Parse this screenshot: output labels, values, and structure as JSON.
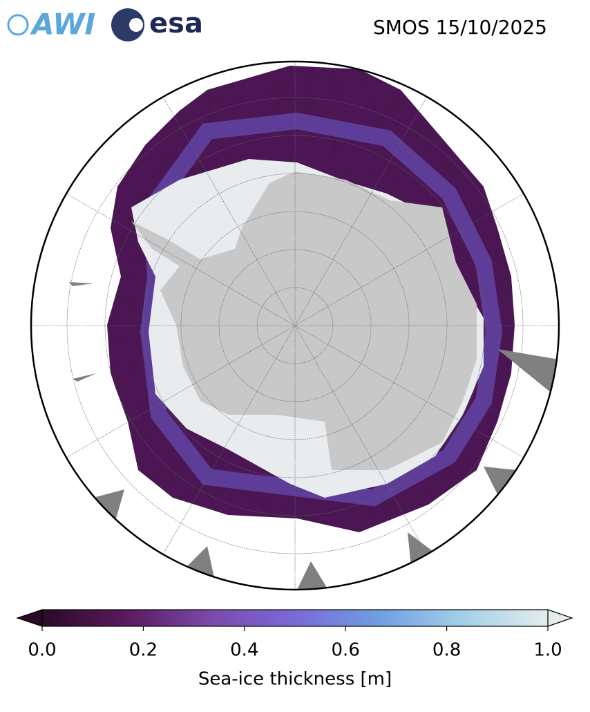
{
  "header": {
    "title": "SMOS 15/10/2025",
    "logos": [
      "AWI",
      "esa"
    ]
  },
  "colorbar": {
    "label": "Sea-ice thickness [m]",
    "lim": [
      0,
      1
    ],
    "ticks": [
      {
        "value": 0,
        "label": "0.0"
      },
      {
        "value": 0.2,
        "label": "0.2"
      },
      {
        "value": 0.4,
        "label": "0.4"
      },
      {
        "value": 0.6,
        "label": "0.6"
      },
      {
        "value": 0.8,
        "label": "0.8"
      },
      {
        "value": 1,
        "label": "1.0"
      }
    ],
    "colors": [
      "#2a0a26",
      "#5a1a5e",
      "#7a4aaa",
      "#7a6ad8",
      "#6f9ee2",
      "#a4d0e8",
      "#e4ecec"
    ]
  }
}
